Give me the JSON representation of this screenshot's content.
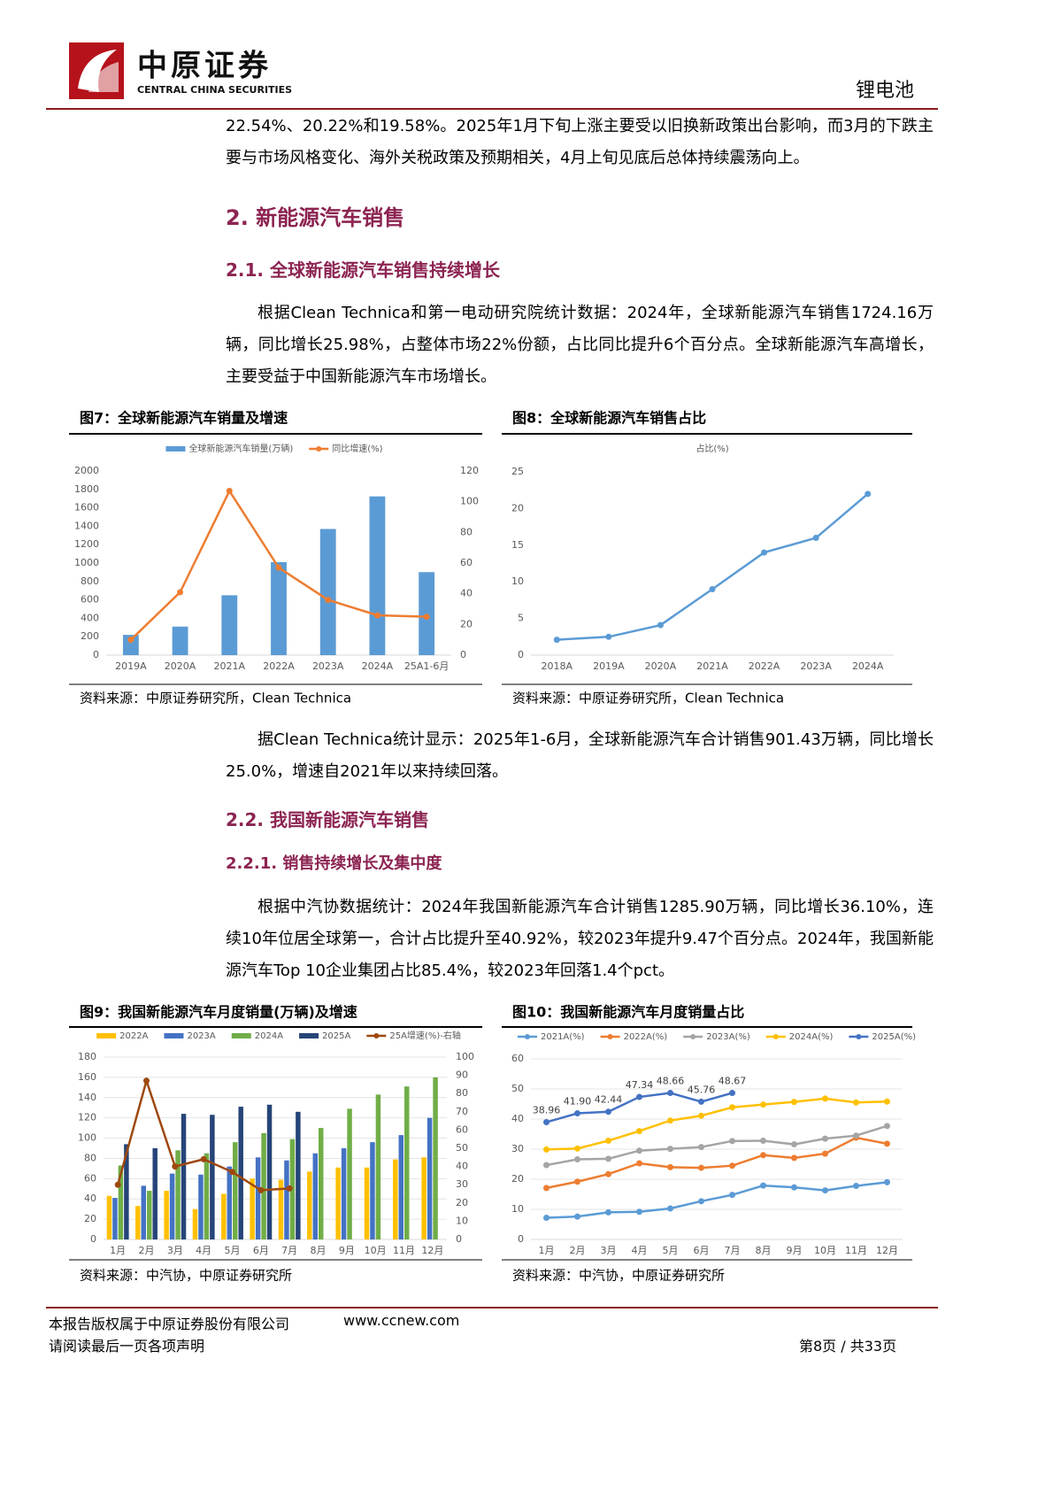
{
  "header": {
    "company": "中原证券",
    "company_en": "CENTRAL CHINA SECURITIES",
    "sector": "锂电池"
  },
  "body": {
    "paragraph_1": "22.54%、20.22%和19.58%。2025年1月下旬上涨主要受以旧换新政策出台影响，而3月的下跌主要与市场风格变化、海外关税政策及预期相关，4月上旬见底后总体持续震荡向上。",
    "heading_2": "2. 新能源汽车销售",
    "heading_2_1": "2.1. 全球新能源汽车销售持续增长",
    "paragraph_2": "根据Clean Technica和第一电动研究院统计数据：2024年，全球新能源汽车销售1724.16万辆，同比增长25.98%，占整体市场22%份额，占比同比提升6个百分点。全球新能源汽车高增长，主要受益于中国新能源汽车市场增长。",
    "paragraph_3": "据Clean Technica统计显示：2025年1-6月，全球新能源汽车合计销售901.43万辆，同比增长25.0%，增速自2021年以来持续回落。",
    "heading_2_2": "2.2. 我国新能源汽车销售",
    "heading_2_2_1": "2.2.1. 销售持续增长及集中度",
    "paragraph_4": "根据中汽协数据统计：2024年我国新能源汽车合计销售1285.90万辆，同比增长36.10%，连续10年位居全球第一，合计占比提升至40.92%，较2023年提升9.47个百分点。2024年，我国新能源汽车Top 10企业集团占比85.4%，较2023年回落1.4个pct。"
  },
  "chart_data": [
    {
      "type": "bar",
      "title": "图7：全球新能源汽车销量及增速",
      "source": "资料来源：中原证券研究所，Clean Technica",
      "categories": [
        "2019A",
        "2020A",
        "2021A",
        "2022A",
        "2023A",
        "2024A",
        "25A1-6月"
      ],
      "series": [
        {
          "name": "全球新能源汽车销量(万辆)",
          "color": "#5b9bd5",
          "values": [
            220,
            310,
            650,
            1010,
            1370,
            1724.16,
            901.43
          ]
        },
        {
          "name": "同比增速(%)",
          "color": "#ed7d31",
          "type": "line",
          "axis": "y2",
          "values": [
            10,
            41,
            107,
            57,
            36,
            25.98,
            25.0
          ]
        }
      ],
      "ylim": [
        0,
        2000
      ],
      "yticks": [
        0,
        200,
        400,
        600,
        800,
        1000,
        1200,
        1400,
        1600,
        1800,
        2000
      ],
      "y2lim": [
        0,
        120
      ],
      "y2ticks": [
        0,
        20,
        40,
        60,
        80,
        100,
        120
      ],
      "grid": false,
      "legend": "top"
    },
    {
      "type": "line",
      "title": "图8：全球新能源汽车销售占比",
      "source": "资料来源：中原证券研究所，Clean Technica",
      "categories": [
        "2018A",
        "2019A",
        "2020A",
        "2021A",
        "2022A",
        "2023A",
        "2024A"
      ],
      "series": [
        {
          "name": "占比(%)",
          "color": "#5b9bd5",
          "values": [
            2.1,
            2.5,
            4.1,
            9,
            14,
            16,
            22
          ]
        }
      ],
      "ylim": [
        0,
        25
      ],
      "yticks": [
        0,
        5,
        10,
        15,
        20,
        25
      ],
      "grid": false,
      "legend": "top",
      "legend_marker": false
    },
    {
      "type": "bar",
      "title": "图9：我国新能源汽车月度销量(万辆)及增速",
      "source": "资料来源：中汽协，中原证券研究所",
      "categories": [
        "1月",
        "2月",
        "3月",
        "4月",
        "5月",
        "6月",
        "7月",
        "8月",
        "9月",
        "10月",
        "11月",
        "12月"
      ],
      "series": [
        {
          "name": "2022A",
          "color": "#ffc000",
          "values": [
            43,
            33,
            48,
            30,
            45,
            60,
            59,
            67,
            71,
            71,
            79,
            81
          ]
        },
        {
          "name": "2023A",
          "color": "#4472c4",
          "values": [
            41,
            53,
            65,
            64,
            72,
            81,
            78,
            85,
            90,
            96,
            103,
            120
          ]
        },
        {
          "name": "2024A",
          "color": "#70ad47",
          "values": [
            73,
            48,
            88,
            85,
            96,
            105,
            99,
            110,
            129,
            143,
            151,
            160
          ]
        },
        {
          "name": "2025A",
          "color": "#264478",
          "values": [
            94,
            90,
            124,
            123,
            131,
            133,
            126,
            null,
            null,
            null,
            null,
            null
          ]
        },
        {
          "name": "25A增速(%)-右轴",
          "color": "#9e480e",
          "type": "line",
          "axis": "y2",
          "values": [
            30,
            87,
            40,
            44,
            37,
            27,
            28,
            null,
            null,
            null,
            null,
            null
          ]
        }
      ],
      "ylim": [
        0,
        180
      ],
      "yticks": [
        0,
        20,
        40,
        60,
        80,
        100,
        120,
        140,
        160,
        180
      ],
      "y2lim": [
        0,
        100
      ],
      "y2ticks": [
        0,
        10,
        20,
        30,
        40,
        50,
        60,
        70,
        80,
        90,
        100
      ],
      "grid": true,
      "legend": "top"
    },
    {
      "type": "line",
      "title": "图10：我国新能源汽车月度销量占比",
      "source": "资料来源：中汽协，中原证券研究所",
      "categories": [
        "1月",
        "2月",
        "3月",
        "4月",
        "5月",
        "6月",
        "7月",
        "8月",
        "9月",
        "10月",
        "11月",
        "12月"
      ],
      "series": [
        {
          "name": "2021A(%)",
          "color": "#5b9bd5",
          "values": [
            7.2,
            7.6,
            9.0,
            9.2,
            10.3,
            12.7,
            14.8,
            17.9,
            17.3,
            16.3,
            17.8,
            19.0
          ]
        },
        {
          "name": "2022A(%)",
          "color": "#ed7d31",
          "values": [
            17.1,
            19.2,
            21.7,
            25.3,
            24.0,
            23.8,
            24.5,
            28.0,
            27.1,
            28.5,
            33.8,
            31.8
          ]
        },
        {
          "name": "2023A(%)",
          "color": "#a5a5a5",
          "values": [
            24.7,
            26.6,
            26.8,
            29.5,
            30.1,
            30.7,
            32.7,
            32.8,
            31.6,
            33.5,
            34.5,
            37.7
          ]
        },
        {
          "name": "2024A(%)",
          "color": "#ffc000",
          "values": [
            29.9,
            30.2,
            32.8,
            36.0,
            39.5,
            41.1,
            43.9,
            44.8,
            45.7,
            46.8,
            45.5,
            45.8
          ]
        },
        {
          "name": "2025A(%)",
          "color": "#4472c4",
          "values": [
            38.96,
            41.9,
            42.44,
            47.34,
            48.66,
            45.76,
            48.67,
            null,
            null,
            null,
            null,
            null
          ],
          "value_labels": [
            "38.96",
            "41.90",
            "42.44",
            "47.34",
            "48.66",
            "45.76",
            "48.67",
            null,
            null,
            null,
            null,
            null
          ]
        }
      ],
      "ylim": [
        0,
        60
      ],
      "yticks": [
        0,
        10,
        20,
        30,
        40,
        50,
        60
      ],
      "grid": true,
      "legend": "top"
    }
  ],
  "footer": {
    "copyright": "本报告版权属于中原证券股份有限公司",
    "website": "www.ccnew.com",
    "disclaimer": "请阅读最后一页各项声明",
    "page": "第8页 / 共33页"
  }
}
